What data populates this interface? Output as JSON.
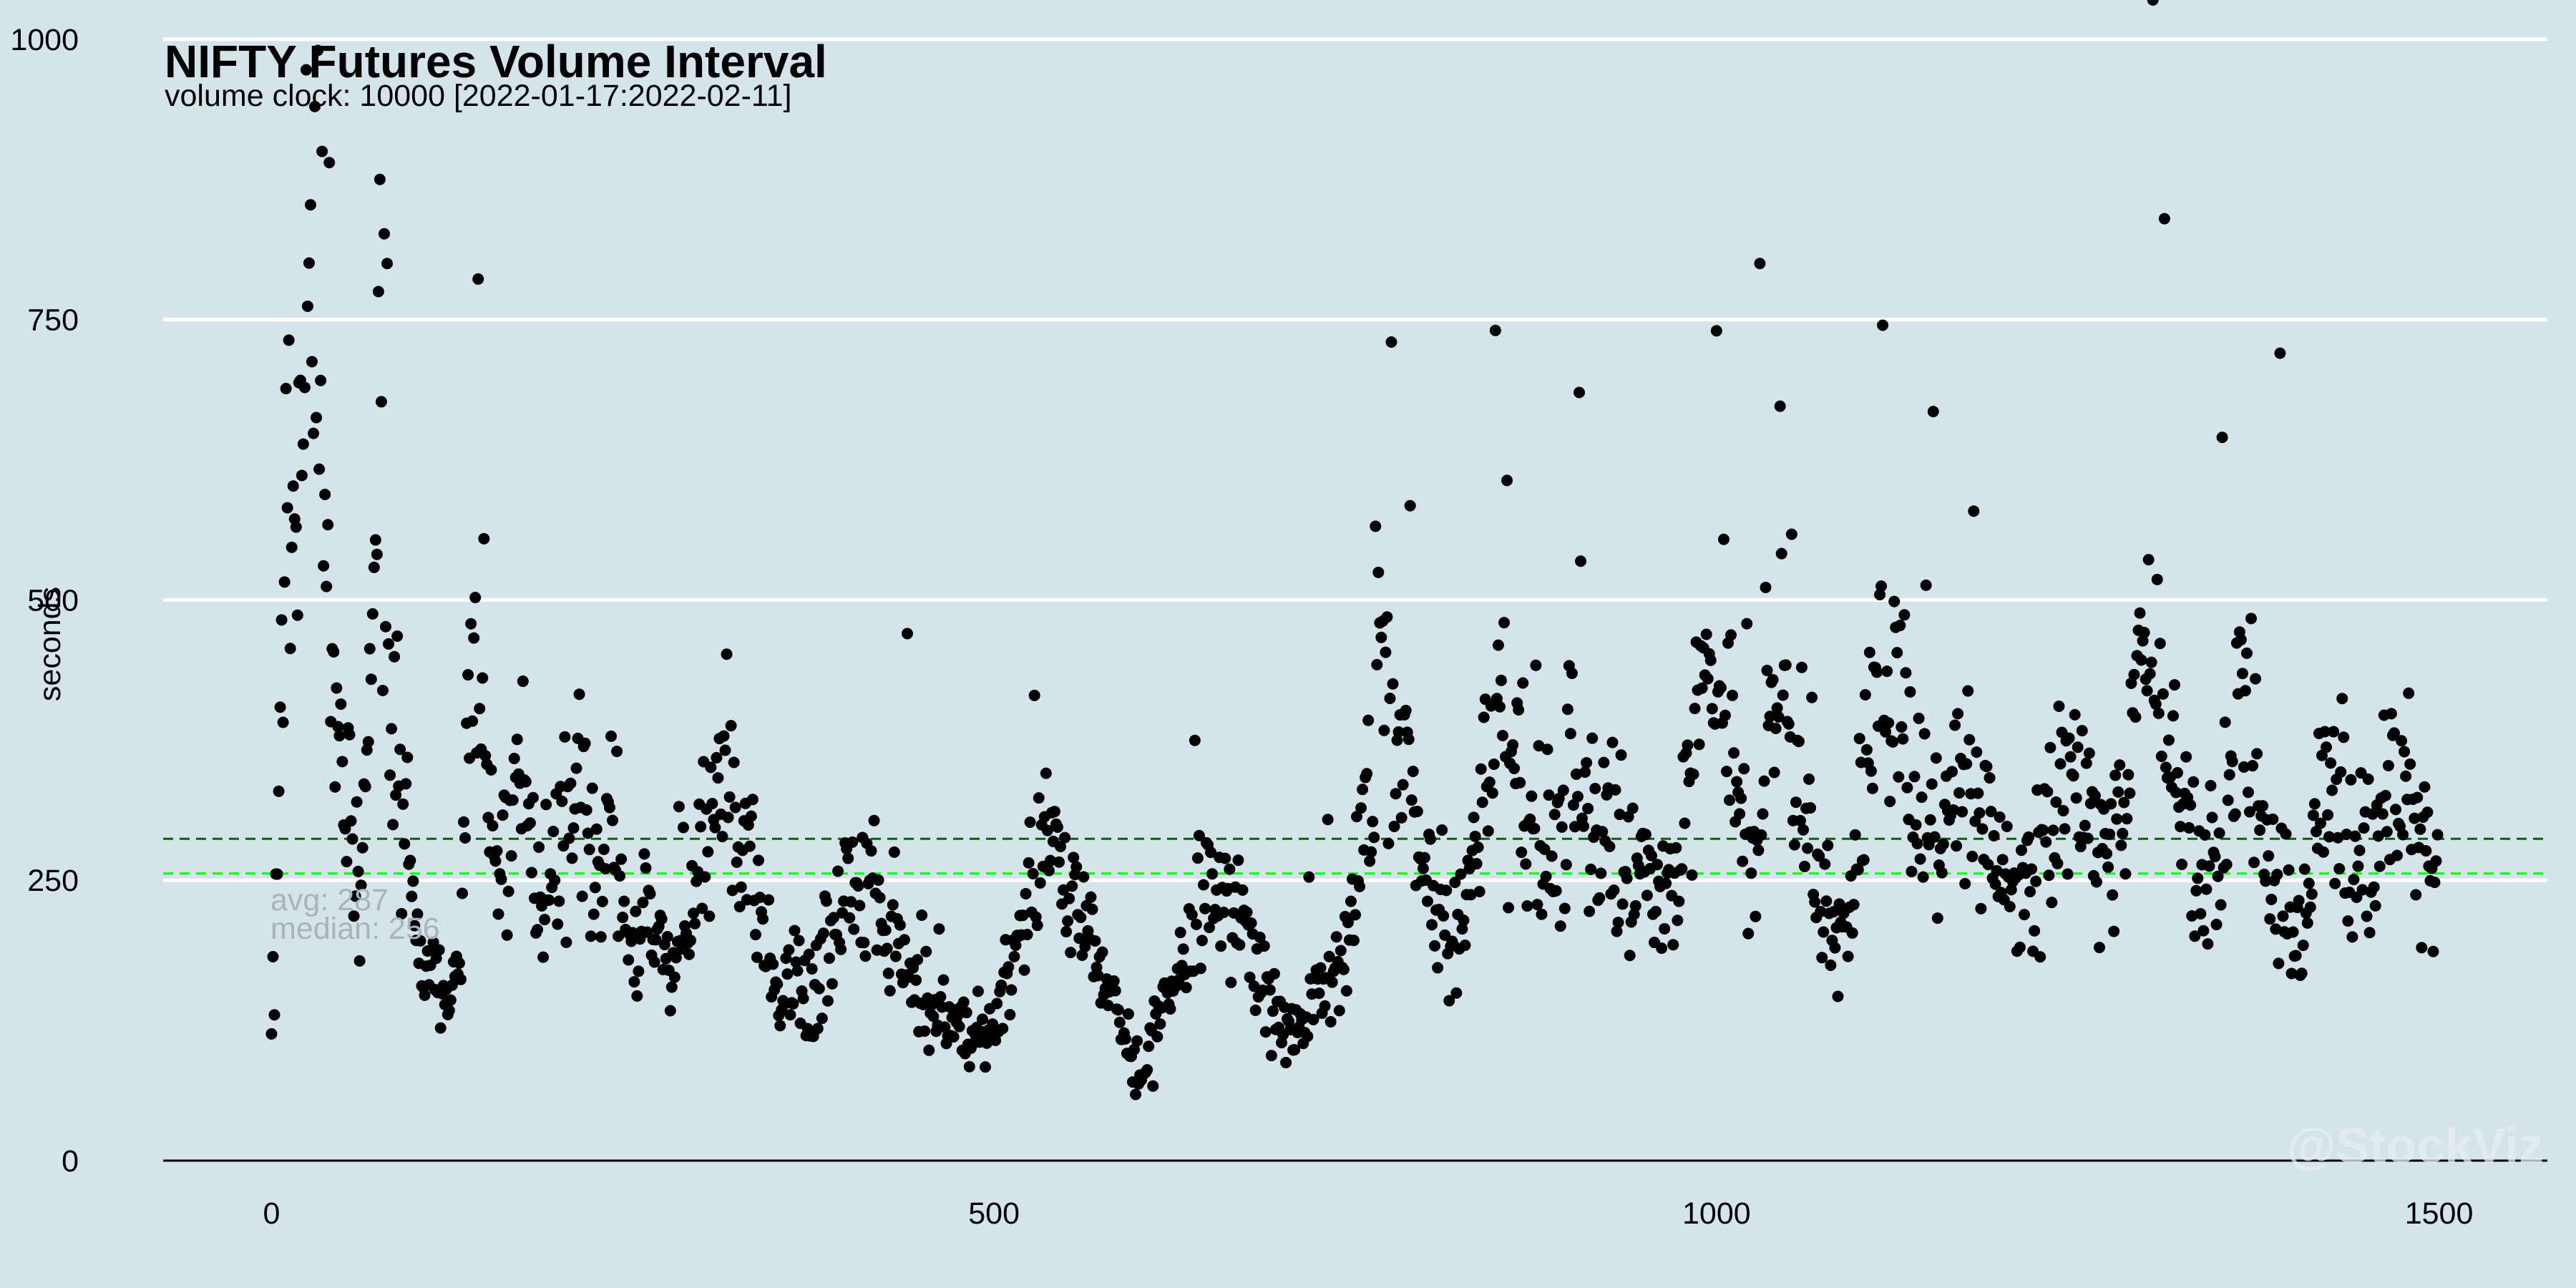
{
  "chart_data": {
    "type": "scatter",
    "title": "NIFTY Futures Volume Interval",
    "subtitle": "volume clock: 10000 [2022-01-17:2022-02-11]",
    "xlabel": "",
    "ylabel": "seconds",
    "xlim": [
      -75,
      1575
    ],
    "ylim": [
      0,
      1035
    ],
    "x_ticks": [
      0,
      500,
      1000,
      1500
    ],
    "x_tick_labels": [
      "0",
      "500",
      "1000",
      "1500"
    ],
    "y_ticks": [
      0,
      250,
      500,
      750,
      1000
    ],
    "y_tick_labels": [
      "0",
      "250",
      "500",
      "750",
      "1000"
    ],
    "grid": "horizontal",
    "point_color": "#000000",
    "n_points": 1500,
    "anchors": [
      [
        0,
        140
      ],
      [
        5,
        350
      ],
      [
        10,
        600
      ],
      [
        15,
        560
      ],
      [
        20,
        680
      ],
      [
        25,
        860
      ],
      [
        30,
        780
      ],
      [
        35,
        620
      ],
      [
        40,
        500
      ],
      [
        45,
        420
      ],
      [
        50,
        340
      ],
      [
        55,
        300
      ],
      [
        60,
        230
      ],
      [
        65,
        320
      ],
      [
        70,
        460
      ],
      [
        75,
        640
      ],
      [
        80,
        430
      ],
      [
        85,
        380
      ],
      [
        90,
        310
      ],
      [
        95,
        300
      ],
      [
        100,
        210
      ],
      [
        105,
        175
      ],
      [
        110,
        160
      ],
      [
        115,
        150
      ],
      [
        120,
        140
      ],
      [
        125,
        170
      ],
      [
        130,
        210
      ],
      [
        135,
        380
      ],
      [
        140,
        450
      ],
      [
        145,
        420
      ],
      [
        150,
        350
      ],
      [
        155,
        280
      ],
      [
        160,
        240
      ],
      [
        165,
        320
      ],
      [
        170,
        350
      ],
      [
        175,
        330
      ],
      [
        180,
        280
      ],
      [
        185,
        250
      ],
      [
        190,
        230
      ],
      [
        195,
        250
      ],
      [
        200,
        270
      ],
      [
        205,
        300
      ],
      [
        210,
        330
      ],
      [
        215,
        340
      ],
      [
        220,
        300
      ],
      [
        225,
        240
      ],
      [
        230,
        230
      ],
      [
        235,
        360
      ],
      [
        240,
        280
      ],
      [
        245,
        220
      ],
      [
        250,
        190
      ],
      [
        255,
        180
      ],
      [
        260,
        220
      ],
      [
        265,
        210
      ],
      [
        270,
        190
      ],
      [
        275,
        175
      ],
      [
        280,
        160
      ],
      [
        285,
        200
      ],
      [
        290,
        230
      ],
      [
        295,
        270
      ],
      [
        300,
        290
      ],
      [
        305,
        320
      ],
      [
        310,
        360
      ],
      [
        315,
        380
      ],
      [
        320,
        340
      ],
      [
        325,
        300
      ],
      [
        330,
        280
      ],
      [
        335,
        250
      ],
      [
        340,
        200
      ],
      [
        345,
        170
      ],
      [
        350,
        150
      ],
      [
        355,
        140
      ],
      [
        360,
        160
      ],
      [
        365,
        170
      ],
      [
        370,
        150
      ],
      [
        375,
        140
      ],
      [
        380,
        180
      ],
      [
        385,
        200
      ],
      [
        390,
        220
      ],
      [
        395,
        230
      ],
      [
        400,
        250
      ],
      [
        405,
        260
      ],
      [
        410,
        240
      ],
      [
        415,
        230
      ],
      [
        420,
        220
      ],
      [
        425,
        200
      ],
      [
        430,
        190
      ],
      [
        435,
        170
      ],
      [
        440,
        160
      ],
      [
        445,
        150
      ],
      [
        450,
        140
      ],
      [
        455,
        120
      ],
      [
        460,
        130
      ],
      [
        465,
        140
      ],
      [
        470,
        130
      ],
      [
        475,
        120
      ],
      [
        480,
        110
      ],
      [
        485,
        100
      ],
      [
        490,
        100
      ],
      [
        495,
        110
      ],
      [
        500,
        130
      ],
      [
        505,
        150
      ],
      [
        510,
        170
      ],
      [
        515,
        190
      ],
      [
        520,
        210
      ],
      [
        525,
        240
      ],
      [
        530,
        270
      ],
      [
        535,
        280
      ],
      [
        540,
        300
      ],
      [
        545,
        280
      ],
      [
        550,
        260
      ],
      [
        555,
        240
      ],
      [
        560,
        220
      ],
      [
        565,
        200
      ],
      [
        570,
        190
      ],
      [
        575,
        170
      ],
      [
        580,
        150
      ],
      [
        585,
        130
      ],
      [
        590,
        110
      ],
      [
        595,
        90
      ],
      [
        600,
        80
      ],
      [
        605,
        90
      ],
      [
        610,
        100
      ],
      [
        615,
        120
      ],
      [
        620,
        140
      ],
      [
        625,
        160
      ],
      [
        630,
        180
      ],
      [
        635,
        200
      ],
      [
        640,
        220
      ],
      [
        645,
        240
      ],
      [
        650,
        260
      ],
      [
        655,
        250
      ],
      [
        660,
        240
      ],
      [
        665,
        230
      ],
      [
        670,
        210
      ],
      [
        675,
        190
      ],
      [
        680,
        170
      ],
      [
        685,
        160
      ],
      [
        690,
        150
      ],
      [
        695,
        130
      ],
      [
        700,
        120
      ],
      [
        705,
        110
      ],
      [
        710,
        120
      ],
      [
        715,
        130
      ],
      [
        720,
        140
      ],
      [
        725,
        150
      ],
      [
        730,
        160
      ],
      [
        735,
        170
      ],
      [
        740,
        190
      ],
      [
        745,
        220
      ],
      [
        750,
        250
      ],
      [
        755,
        300
      ],
      [
        760,
        350
      ],
      [
        765,
        400
      ],
      [
        770,
        430
      ],
      [
        775,
        440
      ],
      [
        780,
        380
      ],
      [
        785,
        340
      ],
      [
        790,
        300
      ],
      [
        795,
        260
      ],
      [
        800,
        240
      ],
      [
        805,
        230
      ],
      [
        810,
        220
      ],
      [
        815,
        200
      ],
      [
        820,
        190
      ],
      [
        825,
        210
      ],
      [
        830,
        250
      ],
      [
        835,
        300
      ],
      [
        840,
        330
      ],
      [
        845,
        360
      ],
      [
        850,
        380
      ],
      [
        855,
        360
      ],
      [
        860,
        340
      ],
      [
        865,
        330
      ],
      [
        870,
        310
      ],
      [
        875,
        290
      ],
      [
        880,
        270
      ],
      [
        885,
        280
      ],
      [
        890,
        300
      ],
      [
        895,
        330
      ],
      [
        900,
        350
      ],
      [
        905,
        340
      ],
      [
        910,
        320
      ],
      [
        915,
        300
      ],
      [
        920,
        280
      ],
      [
        925,
        270
      ],
      [
        930,
        260
      ],
      [
        935,
        250
      ],
      [
        940,
        240
      ],
      [
        945,
        250
      ],
      [
        950,
        260
      ],
      [
        955,
        250
      ],
      [
        960,
        240
      ],
      [
        965,
        230
      ],
      [
        970,
        240
      ],
      [
        975,
        270
      ],
      [
        980,
        320
      ],
      [
        985,
        380
      ],
      [
        990,
        440
      ],
      [
        995,
        480
      ],
      [
        1000,
        450
      ],
      [
        1005,
        420
      ],
      [
        1010,
        380
      ],
      [
        1015,
        330
      ],
      [
        1020,
        290
      ],
      [
        1025,
        270
      ],
      [
        1030,
        310
      ],
      [
        1035,
        380
      ],
      [
        1040,
        420
      ],
      [
        1045,
        410
      ],
      [
        1050,
        390
      ],
      [
        1055,
        360
      ],
      [
        1060,
        320
      ],
      [
        1065,
        280
      ],
      [
        1070,
        250
      ],
      [
        1075,
        230
      ],
      [
        1080,
        210
      ],
      [
        1085,
        200
      ],
      [
        1090,
        190
      ],
      [
        1095,
        220
      ],
      [
        1100,
        300
      ],
      [
        1105,
        380
      ],
      [
        1110,
        420
      ],
      [
        1115,
        450
      ],
      [
        1120,
        440
      ],
      [
        1125,
        420
      ],
      [
        1130,
        400
      ],
      [
        1135,
        370
      ],
      [
        1140,
        340
      ],
      [
        1145,
        310
      ],
      [
        1150,
        290
      ],
      [
        1155,
        280
      ],
      [
        1160,
        300
      ],
      [
        1165,
        330
      ],
      [
        1170,
        340
      ],
      [
        1175,
        330
      ],
      [
        1180,
        310
      ],
      [
        1185,
        290
      ],
      [
        1190,
        270
      ],
      [
        1195,
        260
      ],
      [
        1200,
        250
      ],
      [
        1205,
        240
      ],
      [
        1210,
        230
      ],
      [
        1215,
        240
      ],
      [
        1220,
        250
      ],
      [
        1225,
        270
      ],
      [
        1230,
        290
      ],
      [
        1235,
        310
      ],
      [
        1240,
        330
      ],
      [
        1245,
        340
      ],
      [
        1250,
        330
      ],
      [
        1255,
        310
      ],
      [
        1260,
        290
      ],
      [
        1265,
        270
      ],
      [
        1270,
        260
      ],
      [
        1275,
        270
      ],
      [
        1280,
        300
      ],
      [
        1285,
        350
      ],
      [
        1290,
        400
      ],
      [
        1295,
        430
      ],
      [
        1300,
        440
      ],
      [
        1305,
        430
      ],
      [
        1310,
        400
      ],
      [
        1315,
        360
      ],
      [
        1320,
        320
      ],
      [
        1325,
        290
      ],
      [
        1330,
        270
      ],
      [
        1335,
        250
      ],
      [
        1340,
        240
      ],
      [
        1345,
        250
      ],
      [
        1350,
        280
      ],
      [
        1355,
        320
      ],
      [
        1360,
        360
      ],
      [
        1365,
        380
      ],
      [
        1370,
        360
      ],
      [
        1375,
        330
      ],
      [
        1380,
        300
      ],
      [
        1385,
        270
      ],
      [
        1390,
        240
      ],
      [
        1395,
        210
      ],
      [
        1400,
        190
      ],
      [
        1405,
        200
      ],
      [
        1410,
        240
      ],
      [
        1415,
        300
      ],
      [
        1420,
        340
      ],
      [
        1425,
        360
      ],
      [
        1430,
        350
      ],
      [
        1435,
        320
      ],
      [
        1440,
        290
      ],
      [
        1445,
        270
      ],
      [
        1450,
        260
      ],
      [
        1455,
        280
      ],
      [
        1460,
        300
      ],
      [
        1465,
        320
      ],
      [
        1470,
        310
      ],
      [
        1475,
        300
      ],
      [
        1480,
        290
      ],
      [
        1485,
        270
      ],
      [
        1490,
        260
      ],
      [
        1495,
        250
      ],
      [
        1500,
        250
      ]
    ],
    "outliers": [
      [
        30,
        940
      ],
      [
        35,
        900
      ],
      [
        40,
        890
      ],
      [
        75,
        875
      ],
      [
        80,
        800
      ],
      [
        2,
        130
      ],
      [
        1302,
        1035
      ],
      [
        1310,
        840
      ],
      [
        1030,
        800
      ],
      [
        1115,
        745
      ],
      [
        1390,
        720
      ],
      [
        775,
        730
      ],
      [
        905,
        685
      ],
      [
        1000,
        740
      ],
      [
        1150,
        668
      ],
      [
        1350,
        645
      ],
      [
        440,
        470
      ]
    ],
    "reference_lines": [
      {
        "name": "avg",
        "value": 287,
        "label": "avg: 287",
        "color": "#006400",
        "style": "dashed"
      },
      {
        "name": "median",
        "value": 256,
        "label": "median: 256",
        "color": "#00ff00",
        "style": "dashed"
      }
    ]
  },
  "watermark": "@StockViz"
}
